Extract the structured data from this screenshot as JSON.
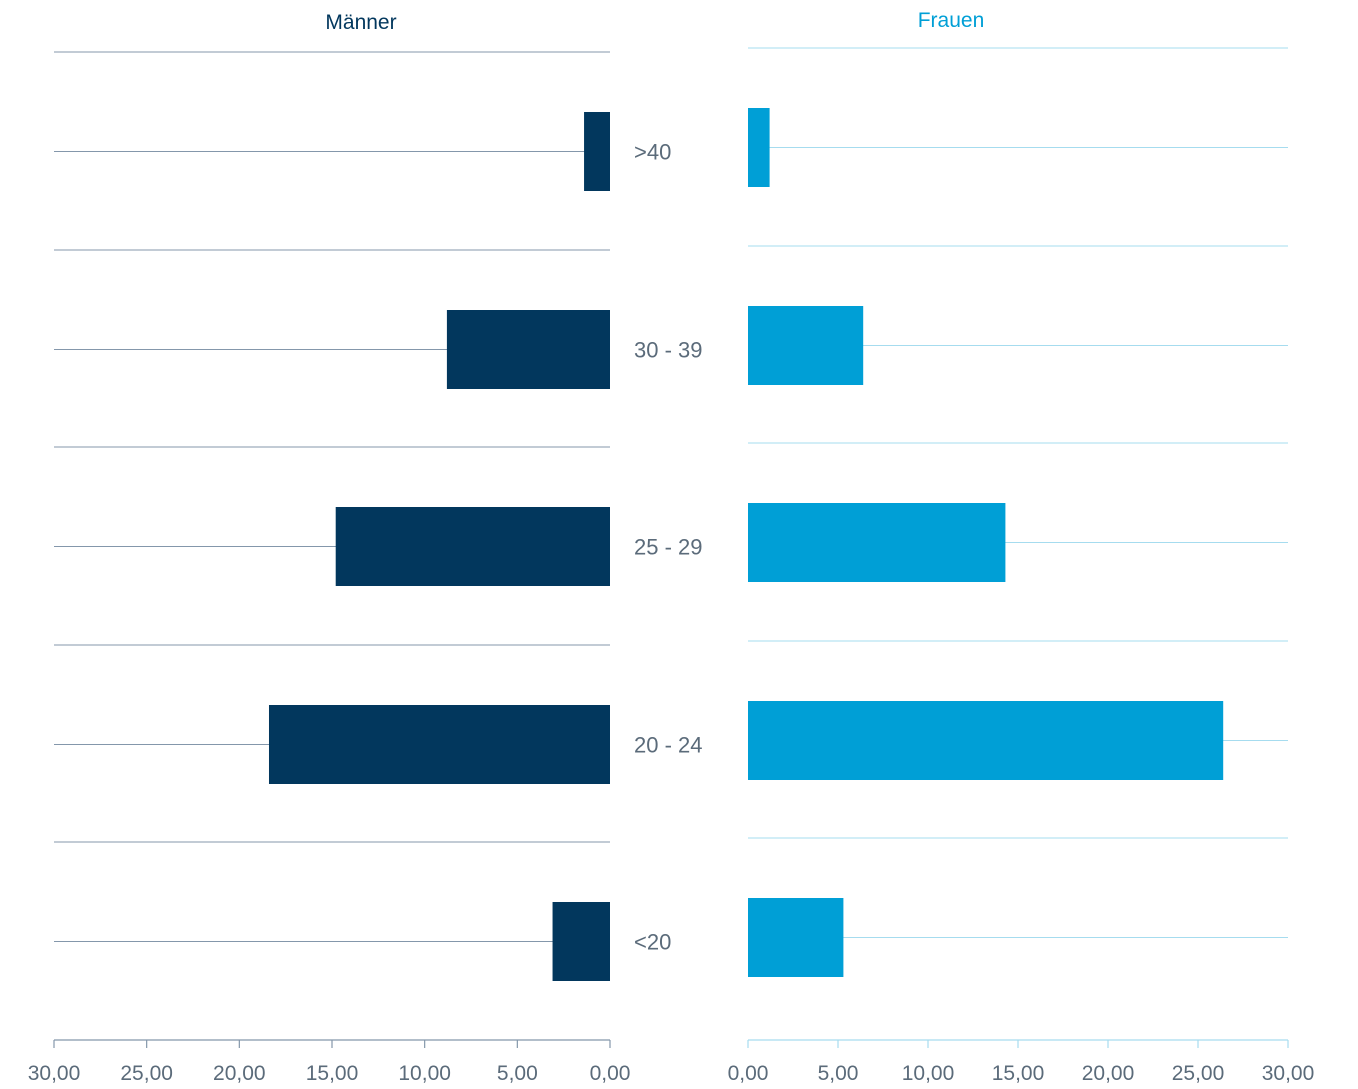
{
  "chart_data": {
    "type": "bar",
    "layout": "population-pyramid",
    "categories": [
      ">40",
      "30 - 39",
      "25 - 29",
      "20 - 24",
      "<20"
    ],
    "series": [
      {
        "name": "Männer",
        "values": [
          1.4,
          8.8,
          14.8,
          18.4,
          3.1
        ],
        "color": "#02375d",
        "side": "left",
        "gridline_color": "#8497ab"
      },
      {
        "name": "Frauen",
        "values": [
          1.2,
          6.4,
          14.3,
          26.4,
          5.3
        ],
        "color": "#009fd6",
        "side": "right",
        "gridline_color": "#a6dcef"
      }
    ],
    "xlim": [
      0,
      30
    ],
    "ticks": [
      0,
      5,
      10,
      15,
      20,
      25,
      30
    ],
    "tick_labels": [
      "0,00",
      "5,00",
      "10,00",
      "15,00",
      "20,00",
      "25,00",
      "30,00"
    ],
    "xlabel": "",
    "ylabel": "",
    "title_colors": {
      "left": "#02375d",
      "right": "#009fd6"
    },
    "label_color": "#5b6b7a",
    "grid": true
  }
}
